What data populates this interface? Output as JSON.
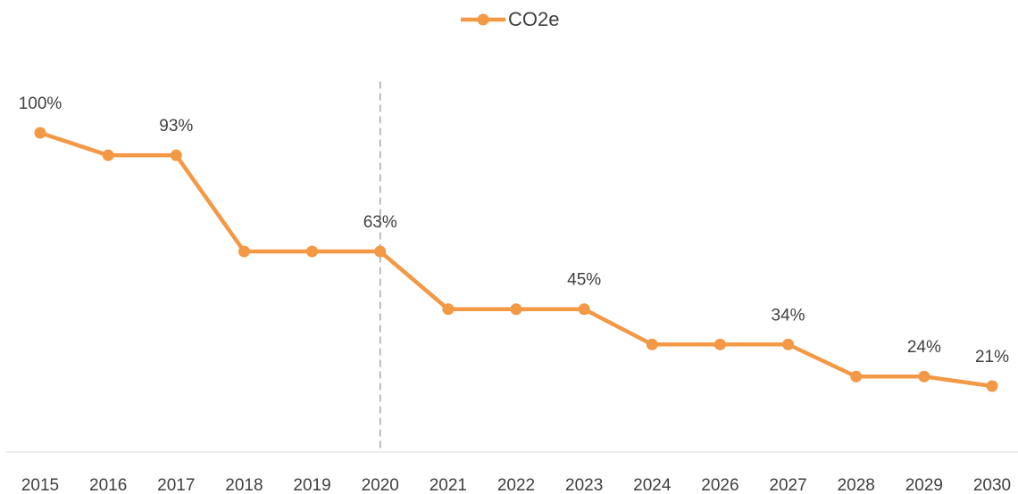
{
  "chart_data": {
    "type": "line",
    "categories": [
      "2015",
      "2016",
      "2017",
      "2018",
      "2019",
      "2020",
      "2021",
      "2022",
      "2023",
      "2024",
      "2026",
      "2027",
      "2028",
      "2029",
      "2030"
    ],
    "series": [
      {
        "name": "CO2e",
        "color": "#f39845",
        "values": [
          100,
          93,
          93,
          63,
          63,
          63,
          45,
          45,
          45,
          34,
          34,
          34,
          24,
          24,
          21
        ],
        "value_labels": [
          "100%",
          null,
          "93%",
          null,
          null,
          "63%",
          null,
          null,
          "45%",
          null,
          null,
          "34%",
          null,
          "24%",
          "21%"
        ]
      }
    ],
    "ylim": [
      0,
      116
    ],
    "marker_line": "2020",
    "legend": "top"
  }
}
